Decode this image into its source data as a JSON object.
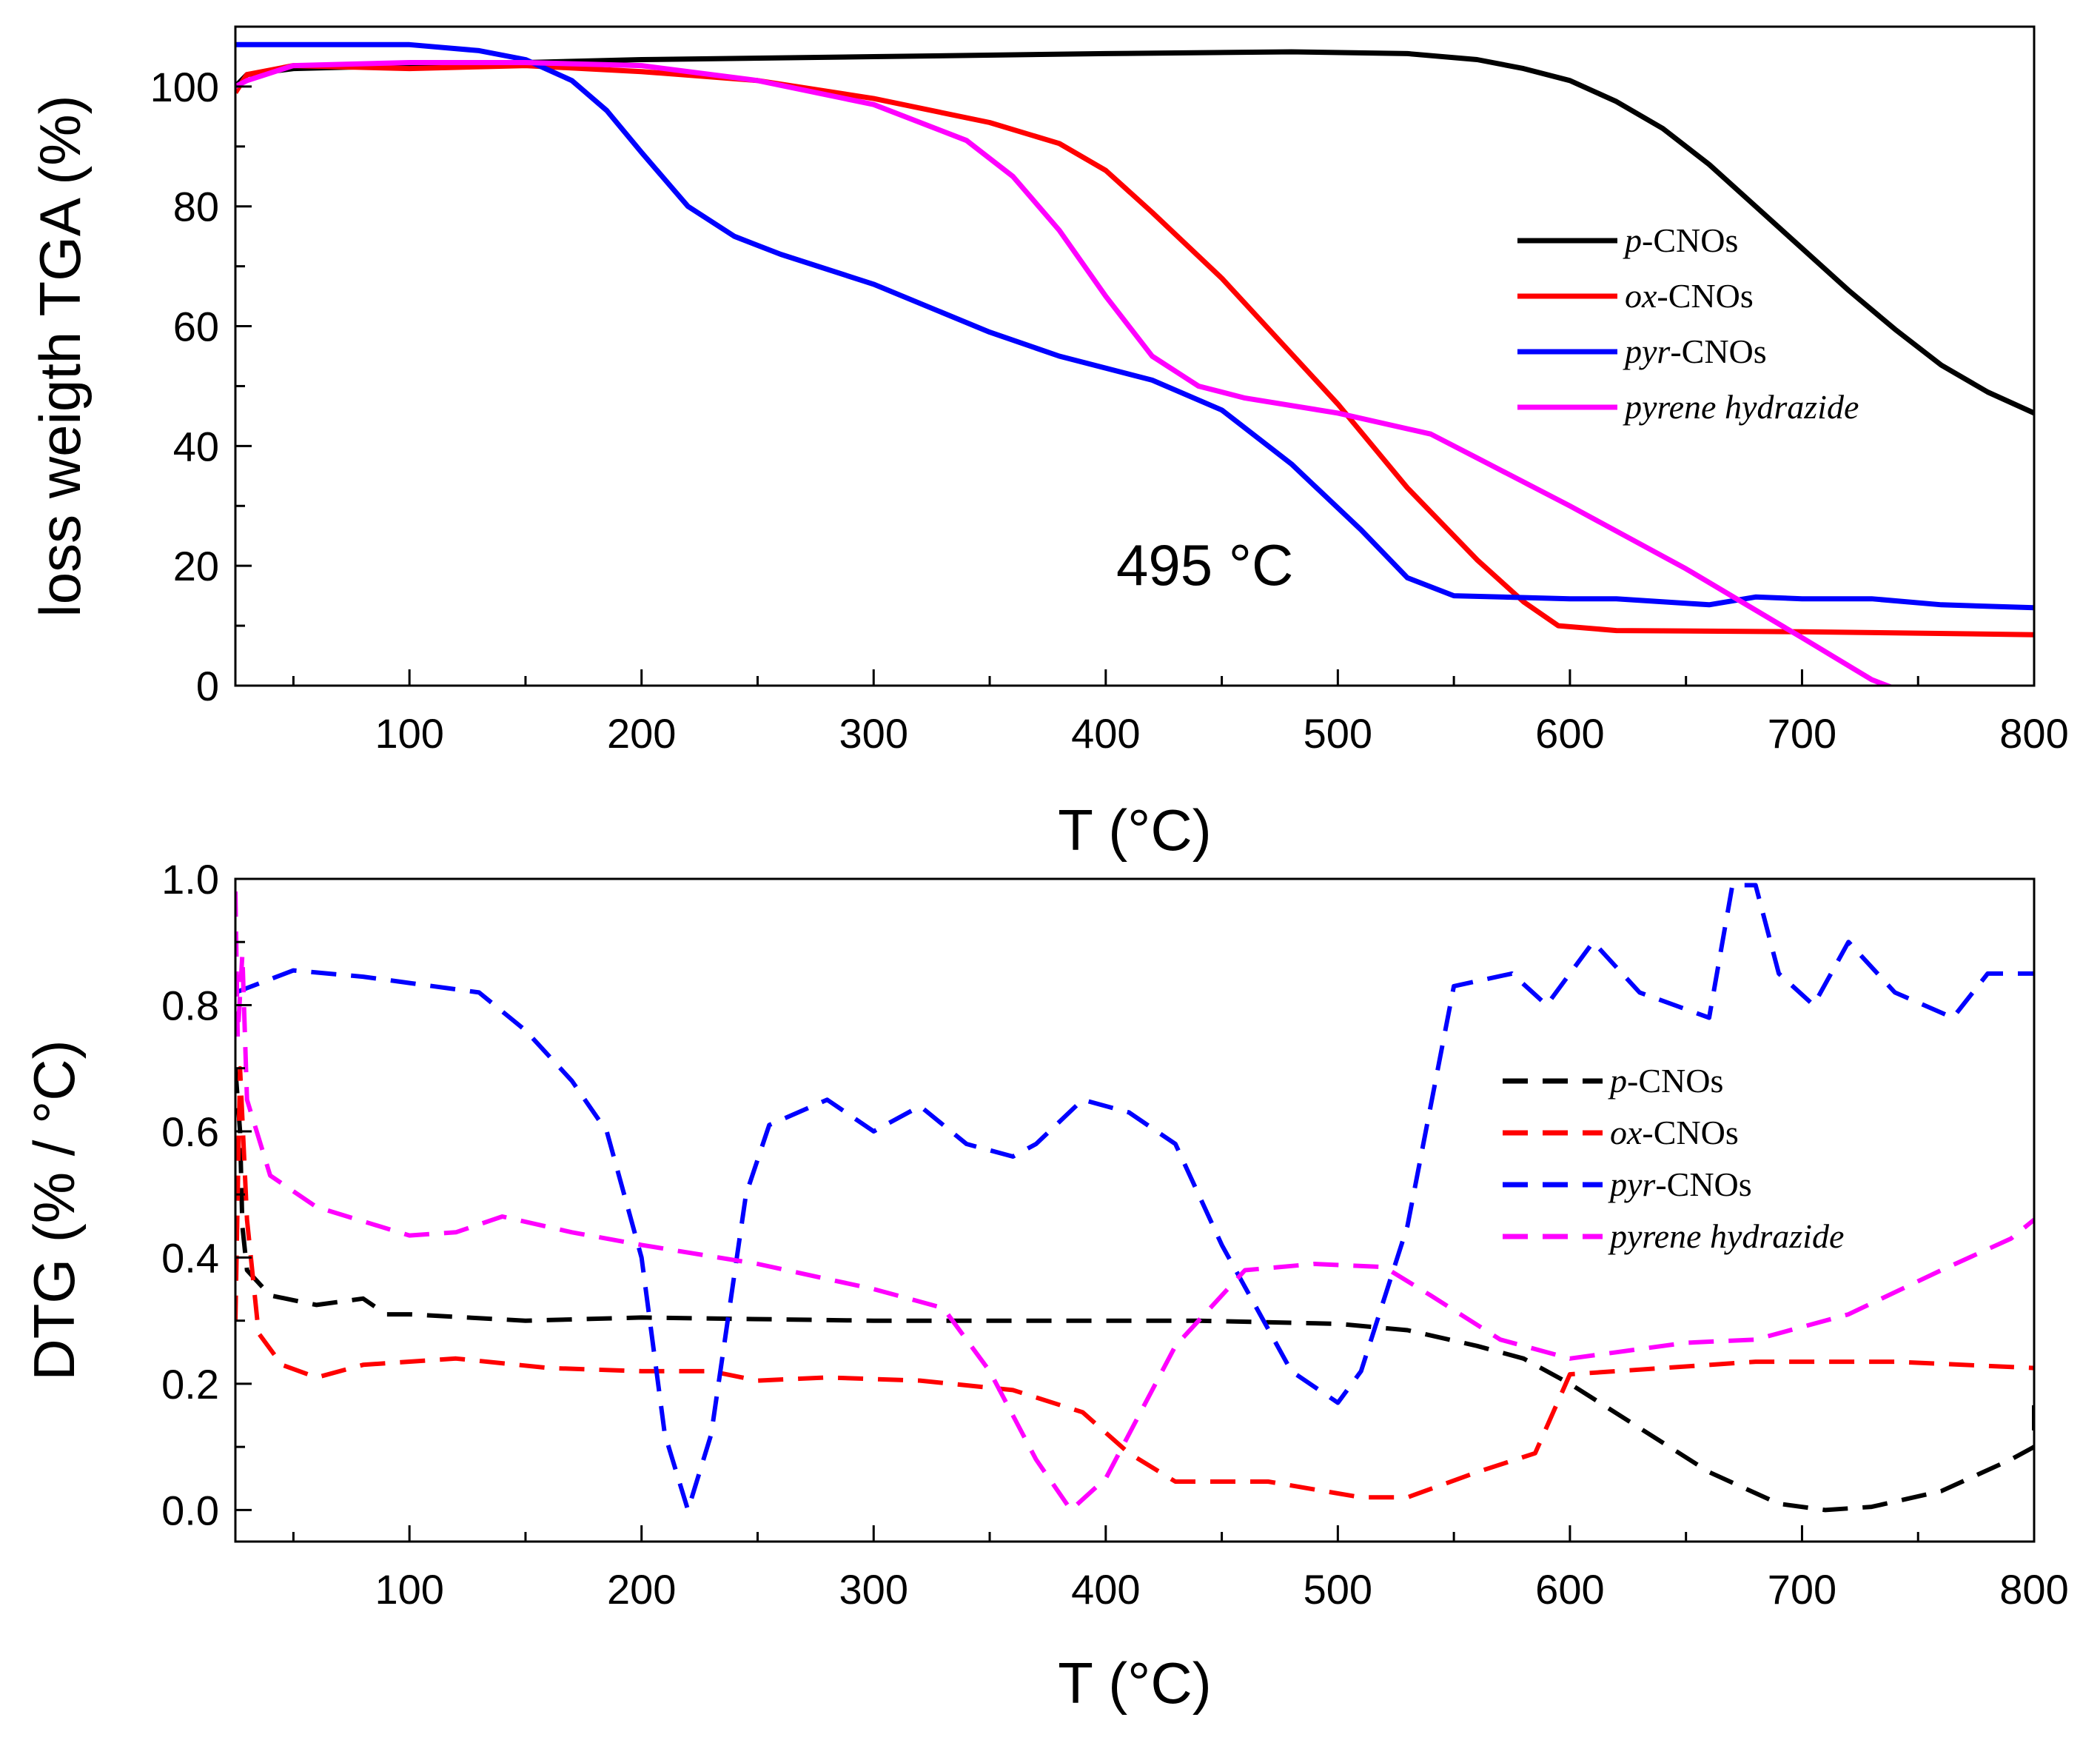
{
  "chart_data": [
    {
      "type": "line",
      "panel": "top",
      "xlabel": "T (°C)",
      "ylabel": "loss weigth TGA (%)",
      "xlim": [
        25,
        800
      ],
      "ylim": [
        0,
        110
      ],
      "xticks": [
        100,
        200,
        300,
        400,
        500,
        600,
        700,
        800
      ],
      "yticks": [
        0,
        20,
        40,
        60,
        80,
        100
      ],
      "grid": false,
      "legend_position": "center-right",
      "annotation": "495 °C",
      "series": [
        {
          "name": "p-CNOs",
          "name_italic": "p",
          "name_rest": "-CNOs",
          "color": "#000000",
          "style": "solid",
          "points": [
            [
              25,
              100
            ],
            [
              30,
              102
            ],
            [
              50,
              103
            ],
            [
              100,
              103.5
            ],
            [
              150,
              104
            ],
            [
              200,
              104.5
            ],
            [
              300,
              105
            ],
            [
              400,
              105.5
            ],
            [
              480,
              105.8
            ],
            [
              530,
              105.5
            ],
            [
              560,
              104.5
            ],
            [
              580,
              103
            ],
            [
              600,
              101
            ],
            [
              620,
              97.5
            ],
            [
              640,
              93
            ],
            [
              660,
              87
            ],
            [
              680,
              80
            ],
            [
              700,
              73
            ],
            [
              720,
              66
            ],
            [
              740,
              59.5
            ],
            [
              760,
              53.5
            ],
            [
              780,
              49
            ],
            [
              800,
              45.5
            ]
          ]
        },
        {
          "name": "ox-CNOs",
          "name_italic": "ox",
          "name_rest": "-CNOs",
          "color": "#ff0000",
          "style": "solid",
          "points": [
            [
              25,
              99
            ],
            [
              30,
              102
            ],
            [
              50,
              103.5
            ],
            [
              100,
              103
            ],
            [
              150,
              103.5
            ],
            [
              200,
              102.5
            ],
            [
              250,
              101
            ],
            [
              300,
              98
            ],
            [
              350,
              94
            ],
            [
              380,
              90.5
            ],
            [
              400,
              86
            ],
            [
              420,
              79
            ],
            [
              450,
              68
            ],
            [
              500,
              47
            ],
            [
              530,
              33
            ],
            [
              560,
              21
            ],
            [
              580,
              14
            ],
            [
              595,
              10
            ],
            [
              620,
              9.2
            ],
            [
              700,
              9
            ],
            [
              800,
              8.5
            ]
          ]
        },
        {
          "name": "pyr-CNOs",
          "name_italic": "pyr",
          "name_rest": "-CNOs",
          "color": "#0000ff",
          "style": "solid",
          "points": [
            [
              25,
              107
            ],
            [
              50,
              107
            ],
            [
              100,
              107
            ],
            [
              130,
              106
            ],
            [
              150,
              104.5
            ],
            [
              170,
              101
            ],
            [
              185,
              96
            ],
            [
              200,
              89
            ],
            [
              220,
              80
            ],
            [
              240,
              75
            ],
            [
              260,
              72
            ],
            [
              300,
              67
            ],
            [
              350,
              59
            ],
            [
              380,
              55
            ],
            [
              420,
              51
            ],
            [
              450,
              46
            ],
            [
              480,
              37
            ],
            [
              510,
              26
            ],
            [
              530,
              18
            ],
            [
              550,
              15
            ],
            [
              600,
              14.5
            ],
            [
              620,
              14.5
            ],
            [
              660,
              13.5
            ],
            [
              680,
              14.8
            ],
            [
              700,
              14.5
            ],
            [
              730,
              14.5
            ],
            [
              760,
              13.5
            ],
            [
              800,
              13
            ]
          ]
        },
        {
          "name": "pyrene hydrazide",
          "name_italic": "pyrene hydrazide",
          "name_rest": "",
          "color": "#ff00ff",
          "style": "solid",
          "points": [
            [
              25,
              100
            ],
            [
              30,
              101
            ],
            [
              50,
              103.5
            ],
            [
              100,
              104
            ],
            [
              150,
              104
            ],
            [
              200,
              103.5
            ],
            [
              250,
              101
            ],
            [
              300,
              97
            ],
            [
              340,
              91
            ],
            [
              360,
              85
            ],
            [
              380,
              76
            ],
            [
              400,
              65
            ],
            [
              420,
              55
            ],
            [
              440,
              50
            ],
            [
              460,
              48
            ],
            [
              500,
              45.5
            ],
            [
              540,
              42
            ],
            [
              560,
              38
            ],
            [
              600,
              30
            ],
            [
              650,
              19.5
            ],
            [
              700,
              8
            ],
            [
              730,
              1
            ],
            [
              740,
              -0.5
            ]
          ]
        }
      ]
    },
    {
      "type": "line",
      "panel": "bottom",
      "xlabel": "T (°C)",
      "ylabel": "DTG (% / °C)",
      "xlim": [
        25,
        800
      ],
      "ylim": [
        -0.05,
        1.0
      ],
      "xticks": [
        100,
        200,
        300,
        400,
        500,
        600,
        700,
        800
      ],
      "yticks": [
        0.0,
        0.2,
        0.4,
        0.6,
        0.8,
        1.0
      ],
      "grid": false,
      "legend_position": "center-right",
      "series": [
        {
          "name": "p-CNOs",
          "name_italic": "p",
          "name_rest": "-CNOs",
          "color": "#000000",
          "style": "dashed",
          "points": [
            [
              25,
              0.7
            ],
            [
              27,
              0.6
            ],
            [
              28,
              0.45
            ],
            [
              30,
              0.38
            ],
            [
              40,
              0.34
            ],
            [
              60,
              0.325
            ],
            [
              80,
              0.335
            ],
            [
              90,
              0.31
            ],
            [
              100,
              0.31
            ],
            [
              150,
              0.3
            ],
            [
              200,
              0.305
            ],
            [
              300,
              0.3
            ],
            [
              400,
              0.3
            ],
            [
              440,
              0.3
            ],
            [
              500,
              0.295
            ],
            [
              530,
              0.285
            ],
            [
              560,
              0.26
            ],
            [
              580,
              0.24
            ],
            [
              600,
              0.2
            ],
            [
              630,
              0.13
            ],
            [
              660,
              0.06
            ],
            [
              690,
              0.01
            ],
            [
              710,
              0.0
            ],
            [
              730,
              0.005
            ],
            [
              760,
              0.03
            ],
            [
              790,
              0.08
            ],
            [
              800,
              0.1
            ],
            [
              800,
              0.17
            ]
          ]
        },
        {
          "name": "ox-CNOs",
          "name_italic": "ox",
          "name_rest": "-CNOs",
          "color": "#ff0000",
          "style": "dashed",
          "points": [
            [
              25,
              0.3
            ],
            [
              27,
              0.7
            ],
            [
              30,
              0.46
            ],
            [
              35,
              0.28
            ],
            [
              45,
              0.23
            ],
            [
              60,
              0.21
            ],
            [
              80,
              0.23
            ],
            [
              120,
              0.24
            ],
            [
              160,
              0.225
            ],
            [
              200,
              0.22
            ],
            [
              230,
              0.22
            ],
            [
              250,
              0.205
            ],
            [
              280,
              0.21
            ],
            [
              320,
              0.205
            ],
            [
              360,
              0.19
            ],
            [
              390,
              0.155
            ],
            [
              410,
              0.09
            ],
            [
              430,
              0.045
            ],
            [
              470,
              0.045
            ],
            [
              510,
              0.02
            ],
            [
              530,
              0.02
            ],
            [
              560,
              0.06
            ],
            [
              585,
              0.09
            ],
            [
              600,
              0.215
            ],
            [
              620,
              0.22
            ],
            [
              680,
              0.235
            ],
            [
              740,
              0.235
            ],
            [
              800,
              0.225
            ]
          ]
        },
        {
          "name": "pyr-CNOs",
          "name_italic": "pyr",
          "name_rest": "-CNOs",
          "color": "#0000ff",
          "style": "dashed",
          "points": [
            [
              25,
              0.82
            ],
            [
              50,
              0.855
            ],
            [
              80,
              0.845
            ],
            [
              100,
              0.835
            ],
            [
              130,
              0.82
            ],
            [
              150,
              0.76
            ],
            [
              170,
              0.68
            ],
            [
              185,
              0.6
            ],
            [
              200,
              0.4
            ],
            [
              210,
              0.12
            ],
            [
              220,
              0.0
            ],
            [
              230,
              0.12
            ],
            [
              245,
              0.5
            ],
            [
              255,
              0.61
            ],
            [
              280,
              0.65
            ],
            [
              300,
              0.6
            ],
            [
              320,
              0.64
            ],
            [
              340,
              0.58
            ],
            [
              360,
              0.56
            ],
            [
              370,
              0.58
            ],
            [
              390,
              0.65
            ],
            [
              410,
              0.63
            ],
            [
              430,
              0.58
            ],
            [
              450,
              0.42
            ],
            [
              480,
              0.22
            ],
            [
              500,
              0.17
            ],
            [
              510,
              0.22
            ],
            [
              530,
              0.45
            ],
            [
              550,
              0.83
            ],
            [
              575,
              0.85
            ],
            [
              590,
              0.8
            ],
            [
              610,
              0.9
            ],
            [
              630,
              0.82
            ],
            [
              660,
              0.78
            ],
            [
              670,
              0.99
            ],
            [
              680,
              0.99
            ],
            [
              690,
              0.85
            ],
            [
              705,
              0.8
            ],
            [
              720,
              0.9
            ],
            [
              740,
              0.82
            ],
            [
              765,
              0.78
            ],
            [
              780,
              0.85
            ],
            [
              800,
              0.85
            ]
          ]
        },
        {
          "name": "pyrene hydrazide",
          "name_italic": "pyrene hydrazide",
          "name_rest": "",
          "color": "#ff00ff",
          "style": "dashed",
          "points": [
            [
              25,
              0.98
            ],
            [
              26,
              0.75
            ],
            [
              28,
              0.88
            ],
            [
              30,
              0.65
            ],
            [
              40,
              0.53
            ],
            [
              60,
              0.48
            ],
            [
              100,
              0.435
            ],
            [
              120,
              0.44
            ],
            [
              140,
              0.465
            ],
            [
              170,
              0.44
            ],
            [
              200,
              0.42
            ],
            [
              250,
              0.39
            ],
            [
              300,
              0.35
            ],
            [
              330,
              0.32
            ],
            [
              350,
              0.22
            ],
            [
              370,
              0.08
            ],
            [
              385,
              0.0
            ],
            [
              400,
              0.05
            ],
            [
              430,
              0.26
            ],
            [
              460,
              0.38
            ],
            [
              490,
              0.39
            ],
            [
              520,
              0.385
            ],
            [
              540,
              0.34
            ],
            [
              570,
              0.27
            ],
            [
              600,
              0.24
            ],
            [
              620,
              0.25
            ],
            [
              650,
              0.265
            ],
            [
              680,
              0.27
            ],
            [
              720,
              0.31
            ],
            [
              760,
              0.38
            ],
            [
              790,
              0.43
            ],
            [
              800,
              0.46
            ]
          ]
        }
      ]
    }
  ]
}
